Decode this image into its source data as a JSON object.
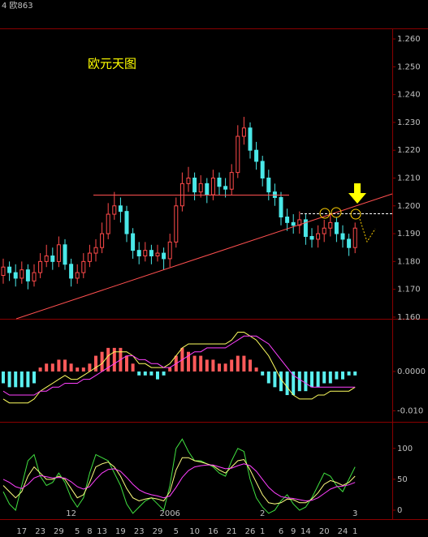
{
  "chart_data": [
    {
      "type": "candlestick",
      "title": "欧元天图",
      "subtitle": "4 欧863",
      "up_color": "#ff4a4a",
      "down_color": "#4ae8e8",
      "open": [
        1.175,
        1.178,
        1.176,
        1.174,
        1.177,
        1.173,
        1.176,
        1.18,
        1.182,
        1.18,
        1.186,
        1.179,
        1.174,
        1.176,
        1.18,
        1.183,
        1.185,
        1.19,
        1.197,
        1.2,
        1.198,
        1.19,
        1.184,
        1.182,
        1.184,
        1.182,
        1.183,
        1.181,
        1.187,
        1.2,
        1.208,
        1.21,
        1.205,
        1.208,
        1.204,
        1.21,
        1.207,
        1.206,
        1.212,
        1.225,
        1.228,
        1.22,
        1.216,
        1.21,
        1.205,
        1.203,
        1.196,
        1.194,
        1.193,
        1.195,
        1.189,
        1.188,
        1.19,
        1.192,
        1.194,
        1.19,
        1.188,
        1.185
      ],
      "high": [
        1.181,
        1.18,
        1.179,
        1.18,
        1.179,
        1.179,
        1.183,
        1.186,
        1.185,
        1.189,
        1.188,
        1.181,
        1.179,
        1.183,
        1.186,
        1.188,
        1.194,
        1.201,
        1.205,
        1.203,
        1.2,
        1.192,
        1.187,
        1.187,
        1.186,
        1.186,
        1.185,
        1.19,
        1.203,
        1.212,
        1.214,
        1.212,
        1.211,
        1.21,
        1.213,
        1.212,
        1.21,
        1.215,
        1.229,
        1.232,
        1.23,
        1.223,
        1.218,
        1.213,
        1.208,
        1.205,
        1.199,
        1.197,
        1.198,
        1.197,
        1.192,
        1.193,
        1.195,
        1.197,
        1.196,
        1.193,
        1.19,
        1.194
      ],
      "low": [
        1.172,
        1.173,
        1.171,
        1.172,
        1.17,
        1.171,
        1.174,
        1.178,
        1.177,
        1.178,
        1.177,
        1.171,
        1.172,
        1.174,
        1.178,
        1.18,
        1.183,
        1.188,
        1.195,
        1.194,
        1.187,
        1.181,
        1.179,
        1.18,
        1.179,
        1.18,
        1.177,
        1.178,
        1.185,
        1.198,
        1.205,
        1.202,
        1.203,
        1.201,
        1.202,
        1.204,
        1.203,
        1.204,
        1.21,
        1.222,
        1.217,
        1.213,
        1.207,
        1.202,
        1.2,
        1.193,
        1.191,
        1.19,
        1.19,
        1.186,
        1.185,
        1.185,
        1.187,
        1.189,
        1.187,
        1.185,
        1.182,
        1.183
      ],
      "close": [
        1.178,
        1.176,
        1.174,
        1.177,
        1.173,
        1.176,
        1.18,
        1.182,
        1.18,
        1.186,
        1.179,
        1.174,
        1.176,
        1.18,
        1.183,
        1.185,
        1.19,
        1.197,
        1.2,
        1.198,
        1.19,
        1.184,
        1.182,
        1.184,
        1.182,
        1.183,
        1.181,
        1.187,
        1.2,
        1.208,
        1.21,
        1.205,
        1.208,
        1.204,
        1.21,
        1.207,
        1.206,
        1.212,
        1.225,
        1.228,
        1.22,
        1.216,
        1.21,
        1.205,
        1.203,
        1.196,
        1.194,
        1.193,
        1.195,
        1.189,
        1.188,
        1.19,
        1.192,
        1.194,
        1.19,
        1.188,
        1.185,
        1.192
      ],
      "ylim": [
        1.1594,
        1.2638
      ],
      "yticks": [
        {
          "value": 1.26,
          "label": "1.260"
        },
        {
          "value": 1.25,
          "label": "1.250"
        },
        {
          "value": 1.24,
          "label": "1.240"
        },
        {
          "value": 1.23,
          "label": "1.230"
        },
        {
          "value": 1.22,
          "label": "1.220"
        },
        {
          "value": 1.21,
          "label": "1.210"
        },
        {
          "value": 1.2,
          "label": "1.200"
        },
        {
          "value": 1.19,
          "label": "1.190"
        },
        {
          "value": 1.18,
          "label": "1.180"
        },
        {
          "value": 1.17,
          "label": "1.170"
        },
        {
          "value": 1.16,
          "label": "1.160"
        }
      ]
    },
    {
      "type": "macd",
      "up_color": "#ff5a5a",
      "down_color": "#5af0f0",
      "histogram": [
        -0.003,
        -0.004,
        -0.004,
        -0.004,
        -0.004,
        -0.003,
        0.001,
        0.002,
        0.002,
        0.003,
        0.003,
        0.002,
        0.001,
        0.001,
        0.002,
        0.004,
        0.005,
        0.006,
        0.006,
        0.006,
        0.004,
        0.002,
        -0.001,
        -0.001,
        -0.001,
        -0.002,
        -0.001,
        0.001,
        0.004,
        0.006,
        0.005,
        0.004,
        0.004,
        0.003,
        0.003,
        0.002,
        0.002,
        0.003,
        0.004,
        0.004,
        0.003,
        0.001,
        -0.001,
        -0.003,
        -0.004,
        -0.005,
        -0.006,
        -0.006,
        -0.005,
        -0.005,
        -0.004,
        -0.004,
        -0.003,
        -0.003,
        -0.002,
        -0.002,
        -0.001,
        -0.001
      ],
      "series": [
        {
          "color": "#ffff60",
          "values": [
            -0.007,
            -0.008,
            -0.008,
            -0.008,
            -0.008,
            -0.007,
            -0.005,
            -0.004,
            -0.003,
            -0.002,
            -0.001,
            -0.002,
            -0.002,
            -0.001,
            0.0,
            0.001,
            0.002,
            0.004,
            0.005,
            0.005,
            0.005,
            0.004,
            0.002,
            0.002,
            0.001,
            0.001,
            0.001,
            0.002,
            0.004,
            0.006,
            0.007,
            0.007,
            0.007,
            0.007,
            0.007,
            0.007,
            0.007,
            0.008,
            0.01,
            0.01,
            0.009,
            0.008,
            0.006,
            0.004,
            0.001,
            -0.002,
            -0.004,
            -0.006,
            -0.007,
            -0.007,
            -0.007,
            -0.006,
            -0.006,
            -0.005,
            -0.005,
            -0.005,
            -0.005,
            -0.004
          ]
        },
        {
          "color": "#ff40ff",
          "values": [
            -0.005,
            -0.006,
            -0.006,
            -0.006,
            -0.006,
            -0.006,
            -0.005,
            -0.005,
            -0.004,
            -0.004,
            -0.003,
            -0.003,
            -0.003,
            -0.002,
            -0.002,
            -0.001,
            0.0,
            0.001,
            0.002,
            0.003,
            0.004,
            0.004,
            0.003,
            0.003,
            0.002,
            0.002,
            0.001,
            0.001,
            0.002,
            0.003,
            0.004,
            0.005,
            0.005,
            0.006,
            0.006,
            0.006,
            0.006,
            0.007,
            0.008,
            0.009,
            0.009,
            0.009,
            0.008,
            0.007,
            0.005,
            0.003,
            0.001,
            -0.001,
            -0.002,
            -0.003,
            -0.004,
            -0.004,
            -0.004,
            -0.004,
            -0.004,
            -0.004,
            -0.004,
            -0.004
          ]
        }
      ],
      "ylim": [
        -0.0128,
        0.0134
      ],
      "yticks": [
        {
          "value": 0,
          "label": "0.0000"
        },
        {
          "value": -0.01,
          "label": "-0.010"
        }
      ]
    },
    {
      "type": "kdj",
      "series": [
        {
          "color": "#40e040",
          "values": [
            30,
            10,
            0,
            40,
            80,
            90,
            55,
            40,
            45,
            60,
            45,
            20,
            5,
            20,
            60,
            90,
            85,
            80,
            60,
            40,
            10,
            -5,
            5,
            15,
            20,
            10,
            0,
            40,
            100,
            115,
            95,
            80,
            80,
            75,
            70,
            60,
            55,
            80,
            100,
            95,
            50,
            20,
            5,
            -5,
            0,
            15,
            25,
            10,
            0,
            5,
            20,
            40,
            60,
            55,
            40,
            30,
            50,
            70
          ]
        },
        {
          "color": "#ffff80",
          "values": [
            40,
            30,
            20,
            30,
            55,
            70,
            60,
            50,
            50,
            55,
            50,
            35,
            20,
            25,
            45,
            70,
            75,
            78,
            70,
            55,
            35,
            20,
            15,
            18,
            20,
            18,
            15,
            30,
            65,
            85,
            85,
            80,
            78,
            75,
            72,
            65,
            60,
            70,
            80,
            82,
            65,
            45,
            25,
            12,
            10,
            12,
            18,
            17,
            12,
            12,
            18,
            28,
            42,
            48,
            45,
            40,
            45,
            55
          ]
        },
        {
          "color": "#ff40ff",
          "values": [
            50,
            45,
            38,
            35,
            42,
            52,
            56,
            54,
            52,
            53,
            52,
            46,
            38,
            34,
            38,
            50,
            60,
            66,
            67,
            63,
            53,
            42,
            33,
            28,
            25,
            23,
            20,
            23,
            37,
            53,
            64,
            70,
            72,
            73,
            73,
            70,
            67,
            68,
            72,
            75,
            72,
            63,
            50,
            37,
            28,
            22,
            20,
            19,
            17,
            15,
            16,
            20,
            27,
            34,
            38,
            39,
            41,
            45
          ]
        }
      ],
      "ylim": [
        -14.5,
        143
      ],
      "yticks": [
        0,
        50,
        100
      ],
      "categories": [
        null,
        null,
        null,
        "17",
        null,
        null,
        "23",
        null,
        null,
        "29",
        null,
        null,
        "5",
        null,
        "8",
        null,
        "13",
        null,
        null,
        "19",
        null,
        null,
        "23",
        null,
        null,
        "29",
        null,
        null,
        "5",
        null,
        null,
        "10",
        null,
        null,
        "16",
        null,
        null,
        "21",
        null,
        null,
        "26",
        null,
        "1",
        null,
        null,
        "6",
        null,
        "9",
        null,
        "14",
        null,
        null,
        "20",
        null,
        null,
        "24",
        null,
        "1"
      ],
      "month_labels": [
        null,
        null,
        null,
        null,
        null,
        null,
        null,
        null,
        null,
        null,
        null,
        "12",
        null,
        null,
        null,
        null,
        null,
        null,
        null,
        null,
        null,
        null,
        null,
        null,
        null,
        null,
        null,
        "2006",
        null,
        null,
        null,
        null,
        null,
        null,
        null,
        null,
        null,
        null,
        null,
        null,
        null,
        null,
        "2",
        null,
        null,
        null,
        null,
        null,
        null,
        null,
        null,
        null,
        null,
        null,
        null,
        null,
        null,
        "3"
      ]
    }
  ]
}
